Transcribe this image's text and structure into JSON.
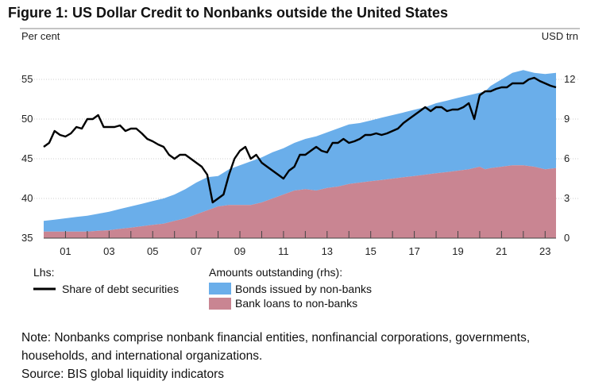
{
  "title": "Figure 1: US Dollar Credit to Nonbanks outside the United States",
  "note": "Note: Nonbanks comprise nonbank financial entities, nonfinancial corporations, governments,",
  "note_cont": "households, and international organizations.",
  "source": "Source: BIS global liquidity indicators",
  "colors": {
    "bonds": "#6aaeea",
    "loans": "#c98592",
    "line": "#000000",
    "grid": "#999999"
  },
  "chart_data": {
    "type": "line+stacked-area",
    "left_axis": {
      "label": "Per cent",
      "min": 35,
      "max": 60,
      "ticks": [
        "35",
        "40",
        "45",
        "50",
        "55"
      ]
    },
    "right_axis": {
      "label": "USD trn",
      "min": 0,
      "max": 15,
      "ticks": [
        "0",
        "3",
        "6",
        "9",
        "12"
      ]
    },
    "x_ticks": [
      "01",
      "03",
      "05",
      "07",
      "09",
      "11",
      "13",
      "15",
      "17",
      "19",
      "21",
      "23"
    ],
    "legend": {
      "lhs_header": "Lhs:",
      "rhs_header": "Amounts outstanding (rhs):",
      "line_label": "Share of debt securities",
      "bonds_label": "Bonds issued by non-banks",
      "loans_label": "Bank loans to non-banks"
    },
    "area_x": [
      2000.0,
      2000.5,
      2001.0,
      2001.5,
      2002.0,
      2002.5,
      2003.0,
      2003.5,
      2004.0,
      2004.5,
      2005.0,
      2005.5,
      2006.0,
      2006.5,
      2007.0,
      2007.5,
      2008.0,
      2008.5,
      2009.0,
      2009.5,
      2010.0,
      2010.5,
      2011.0,
      2011.5,
      2012.0,
      2012.5,
      2013.0,
      2013.5,
      2014.0,
      2014.5,
      2015.0,
      2015.5,
      2016.0,
      2016.5,
      2017.0,
      2017.5,
      2018.0,
      2018.5,
      2019.0,
      2019.5,
      2020.0,
      2020.25,
      2020.5,
      2021.0,
      2021.5,
      2022.0,
      2022.5,
      2023.0,
      2023.5
    ],
    "bank_loans": [
      0.5,
      0.5,
      0.5,
      0.5,
      0.5,
      0.55,
      0.6,
      0.7,
      0.8,
      0.9,
      1.0,
      1.1,
      1.3,
      1.5,
      1.8,
      2.1,
      2.4,
      2.5,
      2.5,
      2.5,
      2.7,
      3.0,
      3.3,
      3.6,
      3.7,
      3.6,
      3.8,
      3.9,
      4.1,
      4.2,
      4.3,
      4.4,
      4.5,
      4.6,
      4.7,
      4.8,
      4.9,
      5.0,
      5.1,
      5.2,
      5.4,
      5.2,
      5.3,
      5.4,
      5.5,
      5.5,
      5.4,
      5.2,
      5.3
    ],
    "bonds": [
      0.8,
      0.9,
      1.0,
      1.1,
      1.2,
      1.3,
      1.4,
      1.5,
      1.6,
      1.7,
      1.8,
      1.9,
      2.0,
      2.2,
      2.4,
      2.5,
      2.3,
      2.7,
      3.0,
      3.3,
      3.4,
      3.5,
      3.5,
      3.6,
      3.8,
      4.1,
      4.2,
      4.4,
      4.5,
      4.5,
      4.6,
      4.7,
      4.8,
      4.9,
      5.0,
      5.1,
      5.3,
      5.4,
      5.5,
      5.6,
      5.6,
      5.9,
      6.2,
      6.6,
      7.0,
      7.2,
      7.1,
      7.2,
      7.2
    ],
    "share_x": [
      2000.0,
      2000.25,
      2000.5,
      2000.75,
      2001.0,
      2001.25,
      2001.5,
      2001.75,
      2002.0,
      2002.25,
      2002.5,
      2002.75,
      2003.0,
      2003.25,
      2003.5,
      2003.75,
      2004.0,
      2004.25,
      2004.5,
      2004.75,
      2005.0,
      2005.25,
      2005.5,
      2005.75,
      2006.0,
      2006.25,
      2006.5,
      2006.75,
      2007.0,
      2007.25,
      2007.5,
      2007.75,
      2008.0,
      2008.25,
      2008.5,
      2008.75,
      2009.0,
      2009.25,
      2009.5,
      2009.75,
      2010.0,
      2010.25,
      2010.5,
      2010.75,
      2011.0,
      2011.25,
      2011.5,
      2011.75,
      2012.0,
      2012.25,
      2012.5,
      2012.75,
      2013.0,
      2013.25,
      2013.5,
      2013.75,
      2014.0,
      2014.25,
      2014.5,
      2014.75,
      2015.0,
      2015.25,
      2015.5,
      2015.75,
      2016.0,
      2016.25,
      2016.5,
      2016.75,
      2017.0,
      2017.25,
      2017.5,
      2017.75,
      2018.0,
      2018.25,
      2018.5,
      2018.75,
      2019.0,
      2019.25,
      2019.5,
      2019.75,
      2020.0,
      2020.25,
      2020.5,
      2020.75,
      2021.0,
      2021.25,
      2021.5,
      2021.75,
      2022.0,
      2022.25,
      2022.5,
      2022.75,
      2023.0,
      2023.25,
      2023.5
    ],
    "share_values": [
      46.5,
      47.0,
      48.5,
      48.0,
      47.8,
      48.2,
      49.0,
      48.8,
      50.0,
      50.0,
      50.5,
      49.0,
      49.0,
      49.0,
      49.2,
      48.5,
      48.8,
      48.8,
      48.2,
      47.5,
      47.2,
      46.8,
      46.5,
      45.5,
      45.0,
      45.5,
      45.5,
      45.0,
      44.5,
      44.0,
      43.0,
      39.5,
      40.0,
      40.5,
      43.0,
      45.0,
      46.0,
      46.5,
      45.0,
      45.5,
      44.5,
      44.0,
      43.5,
      43.0,
      42.5,
      43.5,
      44.0,
      45.5,
      45.5,
      46.0,
      46.5,
      46.0,
      45.8,
      47.0,
      47.0,
      47.5,
      47.0,
      47.2,
      47.5,
      48.0,
      48.0,
      48.2,
      48.0,
      48.2,
      48.5,
      48.8,
      49.5,
      50.0,
      50.5,
      51.0,
      51.5,
      51.0,
      51.5,
      51.5,
      51.0,
      51.2,
      51.2,
      51.5,
      52.0,
      50.0,
      53.0,
      53.5,
      53.5,
      53.8,
      54.0,
      54.0,
      54.5,
      54.5,
      54.5,
      55.0,
      55.2,
      54.8,
      54.5,
      54.2,
      54.0
    ]
  }
}
